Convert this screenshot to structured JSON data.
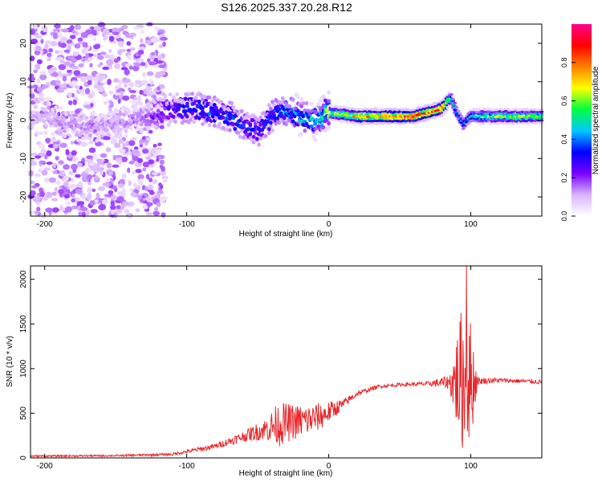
{
  "title": "S126.2025.337.20.28.R12",
  "colors": {
    "axes": "#000000",
    "snr_line": "#e8262a",
    "background": "#ffffff"
  },
  "chart_data": [
    {
      "type": "heatmap",
      "xlabel": "Height of straight line (km)",
      "ylabel": "Frequency (Hz)",
      "xlim": [
        -210,
        150
      ],
      "ylim": [
        -25,
        25
      ],
      "xticks": [
        -200,
        -100,
        0,
        100
      ],
      "yticks": [
        -20,
        -10,
        0,
        10,
        20
      ],
      "colorbar": {
        "label": "Normalized spectral amplitude",
        "range": [
          0,
          1
        ],
        "ticks": [
          "0.0",
          "0.2",
          "0.4",
          "0.6",
          "0.8"
        ],
        "tick_values": [
          0,
          0.2,
          0.4,
          0.6,
          0.8
        ],
        "colormap": [
          "#ffffff",
          "#d9b3ff",
          "#7a00ff",
          "#0000ff",
          "#00c8ff",
          "#00ff40",
          "#ffff00",
          "#ff8000",
          "#ff0000",
          "#ff0090"
        ]
      },
      "ridge": {
        "x": [
          -210,
          -190,
          -170,
          -150,
          -130,
          -110,
          -90,
          -70,
          -50,
          -35,
          -20,
          -10,
          0,
          20,
          40,
          60,
          80,
          86,
          90,
          95,
          100,
          120,
          150
        ],
        "freq_hz": [
          1,
          0,
          -2,
          -1,
          1,
          3,
          3,
          1,
          -3,
          3,
          1,
          0,
          2,
          1,
          1,
          1,
          3,
          6,
          2,
          -1,
          1,
          1,
          1
        ],
        "amplitude": [
          0.12,
          0.14,
          0.16,
          0.14,
          0.18,
          0.3,
          0.38,
          0.36,
          0.32,
          0.42,
          0.46,
          0.5,
          0.6,
          0.75,
          0.85,
          0.92,
          0.86,
          0.55,
          0.45,
          0.4,
          0.48,
          0.65,
          0.66
        ]
      },
      "noise_region": {
        "x_range": [
          -210,
          -115
        ],
        "freq_range": [
          -25,
          25
        ],
        "amplitude_max": 0.15
      }
    },
    {
      "type": "line",
      "xlabel": "Height of straight line (km)",
      "ylabel": "SNR (10 * v/v)",
      "xlim": [
        -210,
        150
      ],
      "ylim": [
        0,
        2150
      ],
      "xticks": [
        -200,
        -100,
        0,
        100
      ],
      "yticks": [
        0,
        500,
        1000,
        1500,
        2000
      ],
      "series": [
        {
          "name": "SNR",
          "x_knots": [
            -210,
            -150,
            -110,
            -80,
            -60,
            -45,
            -35,
            -25,
            -15,
            -5,
            10,
            20,
            35,
            50,
            70,
            85,
            93,
            100,
            105,
            120,
            150
          ],
          "y_knots": [
            20,
            25,
            40,
            130,
            240,
            320,
            380,
            400,
            420,
            470,
            600,
            720,
            800,
            820,
            830,
            850,
            860,
            860,
            860,
            870,
            850
          ],
          "noise_amplitude": [
            10,
            10,
            15,
            30,
            60,
            120,
            250,
            200,
            180,
            150,
            60,
            30,
            20,
            20,
            25,
            80,
            800,
            700,
            40,
            25,
            25
          ],
          "peak": {
            "x": 97,
            "y": 2150
          }
        }
      ]
    }
  ]
}
